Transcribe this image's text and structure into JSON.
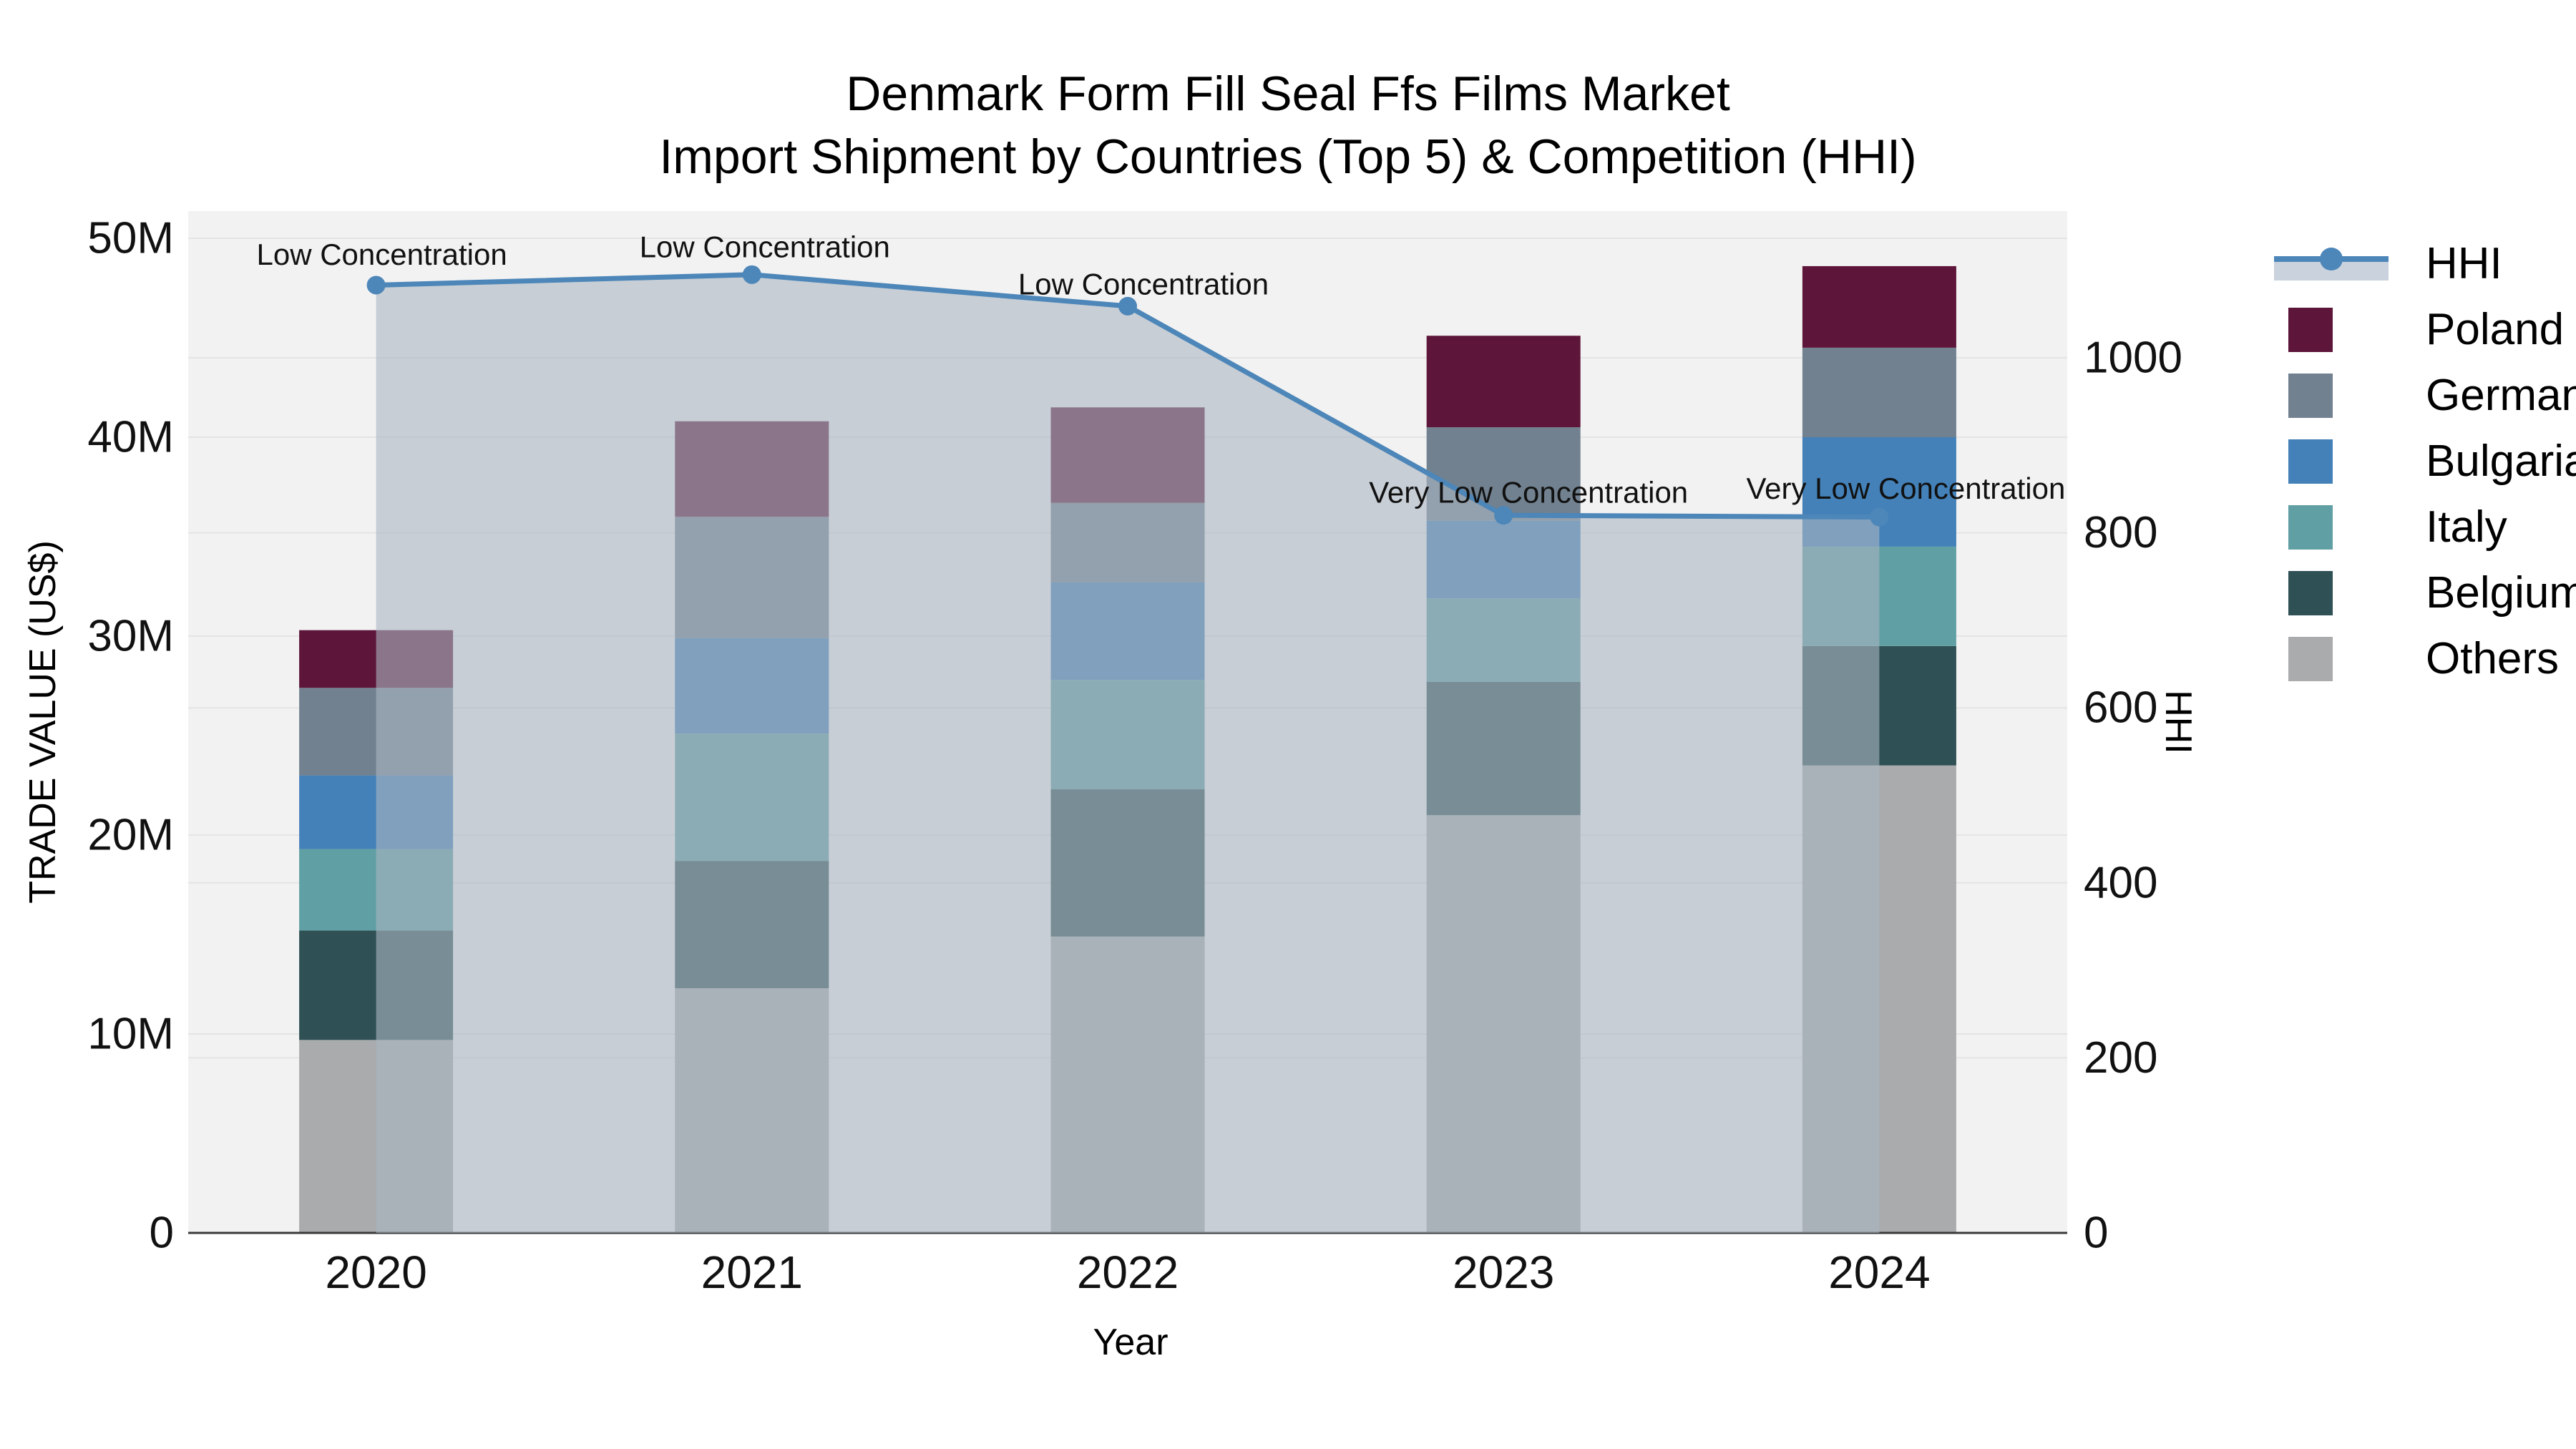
{
  "title": {
    "line1": "Denmark Form Fill Seal Ffs Films Market",
    "line2": "Import Shipment by Countries (Top 5) & Competition (HHI)"
  },
  "legend": [
    {
      "label": "HHI",
      "type": "line",
      "color": "#4d86b8",
      "band_color": "#c9d2dd"
    },
    {
      "label": "Poland",
      "type": "swatch",
      "color": "#5d1539"
    },
    {
      "label": "Germany",
      "type": "swatch",
      "color": "#71818f"
    },
    {
      "label": "Bulgaria",
      "type": "swatch",
      "color": "#4381b8"
    },
    {
      "label": "Italy",
      "type": "swatch",
      "color": "#609fa3"
    },
    {
      "label": "Belgium",
      "type": "swatch",
      "color": "#2f5054"
    },
    {
      "label": "Others",
      "type": "swatch",
      "color": "#a9abad"
    }
  ],
  "chart_data": {
    "type": "bar",
    "subtype": "stacked-bars-with-line-area",
    "categories": [
      "2020",
      "2021",
      "2022",
      "2023",
      "2024"
    ],
    "value_unit": "million US$",
    "series": [
      {
        "name": "Poland",
        "color": "#5d1539",
        "values": [
          2.9,
          4.8,
          4.8,
          4.6,
          4.1
        ]
      },
      {
        "name": "Germany",
        "color": "#71818f",
        "values": [
          4.4,
          6.1,
          4.0,
          4.7,
          4.5
        ]
      },
      {
        "name": "Bulgaria",
        "color": "#4381b8",
        "values": [
          3.7,
          4.8,
          4.9,
          3.9,
          5.5
        ]
      },
      {
        "name": "Italy",
        "color": "#609fa3",
        "values": [
          4.1,
          6.4,
          5.5,
          4.2,
          5.0
        ]
      },
      {
        "name": "Belgium",
        "color": "#2f5054",
        "values": [
          5.5,
          6.4,
          7.4,
          6.7,
          6.0
        ]
      },
      {
        "name": "Others",
        "color": "#a9abad",
        "values": [
          9.7,
          12.3,
          14.9,
          21.0,
          23.5
        ]
      }
    ],
    "stack_totals": [
      30.3,
      40.8,
      41.5,
      45.1,
      48.6
    ],
    "line_series": {
      "name": "HHI",
      "axis": "right",
      "color": "#4d86b8",
      "area_fill": "rgba(170,182,193,0.6)",
      "values": [
        1083,
        1095,
        1059,
        820,
        818
      ]
    },
    "annotations": [
      {
        "category": "2020",
        "text": "Low Concentration"
      },
      {
        "category": "2021",
        "text": "Low Concentration"
      },
      {
        "category": "2022",
        "text": "Low Concentration"
      },
      {
        "category": "2023",
        "text": "Very Low Concentration"
      },
      {
        "category": "2024",
        "text": "Very Low Concentration"
      }
    ],
    "y_left": {
      "label": "TRADE VALUE (US$)",
      "ticks": [
        "0",
        "10M",
        "20M",
        "30M",
        "40M",
        "50M"
      ],
      "tick_values": [
        0,
        10,
        20,
        30,
        40,
        50
      ],
      "range": [
        0,
        51.4
      ]
    },
    "y_right": {
      "label": "HHI",
      "ticks": [
        "0",
        "200",
        "400",
        "600",
        "800",
        "1000"
      ],
      "tick_values": [
        0,
        200,
        400,
        600,
        800,
        1000
      ],
      "range": [
        0,
        1168
      ]
    },
    "x_label": "Year",
    "grid": true,
    "plot_bg": "#f2f2f2",
    "grid_color": "#e4e4e4",
    "axis_line_color": "#3a3a3a",
    "legend_position": "right"
  }
}
